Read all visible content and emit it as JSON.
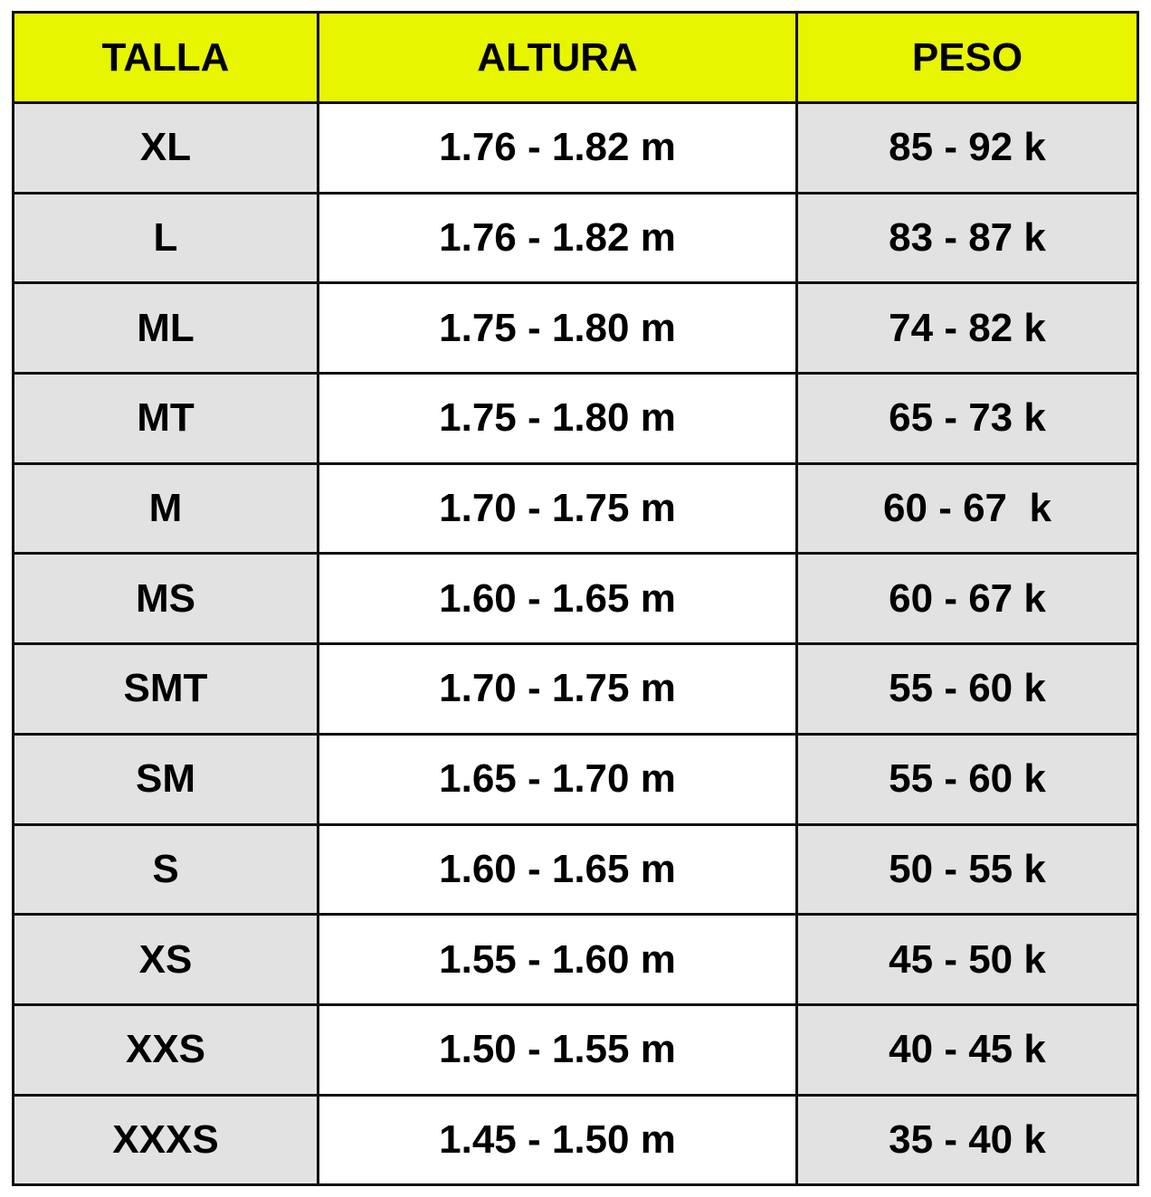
{
  "colors": {
    "header_bg": "#e8f500",
    "shaded_cell_bg": "#e2e2e2",
    "plain_cell_bg": "#ffffff",
    "border": "#111111"
  },
  "table": {
    "headers": [
      "TALLA",
      "ALTURA",
      "PESO"
    ],
    "rows": [
      [
        "XL",
        "1.76 - 1.82 m",
        "85 - 92 k"
      ],
      [
        "L",
        "1.76 - 1.82 m",
        "83 - 87 k"
      ],
      [
        "ML",
        "1.75 - 1.80 m",
        "74 - 82 k"
      ],
      [
        "MT",
        "1.75 - 1.80 m",
        "65 - 73 k"
      ],
      [
        "M",
        "1.70 - 1.75 m",
        "60 - 67  k"
      ],
      [
        "MS",
        "1.60 - 1.65 m",
        "60 - 67 k"
      ],
      [
        "SMT",
        "1.70 - 1.75 m",
        "55 - 60 k"
      ],
      [
        "SM",
        "1.65 - 1.70 m",
        "55 - 60 k"
      ],
      [
        "S",
        "1.60 - 1.65 m",
        "50 - 55 k"
      ],
      [
        "XS",
        "1.55 - 1.60 m",
        "45 - 50 k"
      ],
      [
        "XXS",
        "1.50 - 1.55 m",
        "40 - 45 k"
      ],
      [
        "XXXS",
        "1.45 - 1.50 m",
        "35 - 40 k"
      ]
    ]
  }
}
